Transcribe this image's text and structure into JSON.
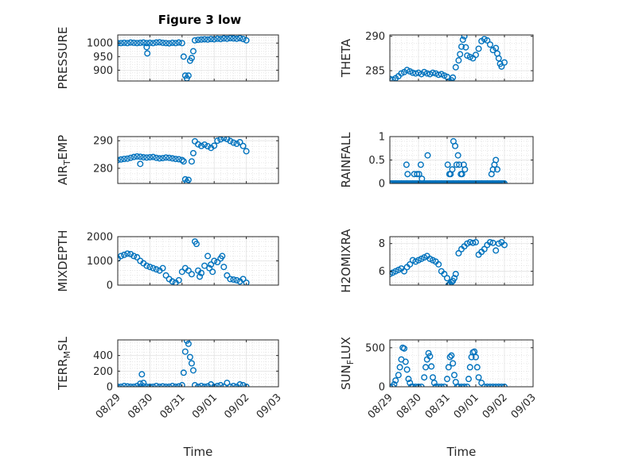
{
  "title": "Figure 3 low",
  "marker_color": "#0072BD",
  "chart_data": [
    {
      "type": "scatter",
      "ylabel": "PRESSURE",
      "ylim": [
        860,
        1030
      ],
      "yticks": [
        900,
        950,
        1000
      ],
      "grid": true,
      "x": [
        0,
        0.1,
        0.2,
        0.3,
        0.4,
        0.5,
        0.6,
        0.7,
        0.8,
        0.9,
        1.0,
        1.1,
        1.2,
        1.3,
        1.4,
        1.5,
        1.6,
        1.7,
        1.8,
        1.9,
        2.0,
        2.05,
        2.1,
        2.15,
        2.2,
        2.25,
        2.3,
        2.35,
        2.4,
        2.5,
        2.6,
        2.7,
        2.8,
        2.9,
        3.0,
        3.1,
        3.2,
        3.3,
        3.4,
        3.5,
        3.6,
        3.7,
        3.8,
        3.9,
        4.0,
        0.9,
        0.92
      ],
      "y": [
        1000,
        1000,
        1001,
        1000,
        1002,
        1001,
        1000,
        1001,
        1002,
        1000,
        1001,
        1000,
        1002,
        1003,
        1001,
        1000,
        999,
        1001,
        1000,
        1002,
        1000,
        950,
        880,
        870,
        880,
        935,
        945,
        970,
        1010,
        1012,
        1013,
        1014,
        1013,
        1015,
        1014,
        1016,
        1015,
        1017,
        1016,
        1018,
        1017,
        1016,
        1018,
        1015,
        1010,
        985,
        962
      ]
    },
    {
      "type": "scatter",
      "ylabel": "THETA",
      "ylim": [
        283.5,
        290.2
      ],
      "yticks": [
        285,
        290
      ],
      "grid": true,
      "x": [
        0,
        0.1,
        0.2,
        0.3,
        0.4,
        0.5,
        0.6,
        0.7,
        0.8,
        0.9,
        1.0,
        1.1,
        1.2,
        1.3,
        1.4,
        1.5,
        1.6,
        1.7,
        1.8,
        1.9,
        2.0,
        2.05,
        2.1,
        2.15,
        2.2,
        2.3,
        2.4,
        2.45,
        2.5,
        2.55,
        2.6,
        2.65,
        2.7,
        2.8,
        2.9,
        3.0,
        3.1,
        3.2,
        3.3,
        3.4,
        3.5,
        3.6,
        3.7,
        3.75,
        3.8,
        3.85,
        3.9,
        4.0
      ],
      "y": [
        283.8,
        283.7,
        283.9,
        284.2,
        284.6,
        284.8,
        285.1,
        284.9,
        284.7,
        284.6,
        284.7,
        284.5,
        284.8,
        284.6,
        284.5,
        284.7,
        284.6,
        284.4,
        284.5,
        284.3,
        284.1,
        283.4,
        283.2,
        283.6,
        284.0,
        285.5,
        286.5,
        287.4,
        288.5,
        289.5,
        290.0,
        288.4,
        287.2,
        287.0,
        286.8,
        287.3,
        288.2,
        289.3,
        289.6,
        289.4,
        288.8,
        288.0,
        288.3,
        287.5,
        286.8,
        286.0,
        285.6,
        286.2
      ]
    },
    {
      "type": "scatter",
      "ylabel": "AIR_TEMP",
      "ylim": [
        274.5,
        291.5
      ],
      "yticks": [
        280,
        290
      ],
      "grid": true,
      "x": [
        0,
        0.1,
        0.2,
        0.3,
        0.4,
        0.5,
        0.6,
        0.7,
        0.8,
        0.9,
        1.0,
        1.1,
        1.2,
        1.3,
        1.4,
        1.5,
        1.6,
        1.7,
        1.8,
        1.9,
        2.0,
        2.05,
        2.1,
        2.15,
        2.2,
        2.3,
        2.35,
        2.4,
        2.5,
        2.6,
        2.7,
        2.8,
        2.9,
        3.0,
        3.1,
        3.2,
        3.3,
        3.4,
        3.5,
        3.6,
        3.7,
        3.8,
        3.9,
        4.0,
        0.7
      ],
      "y": [
        283,
        283.2,
        283.4,
        283.5,
        283.8,
        284.1,
        284.3,
        284.2,
        284.0,
        283.9,
        284.0,
        284.1,
        283.8,
        283.6,
        283.7,
        283.9,
        283.8,
        283.6,
        283.4,
        283.3,
        283.0,
        282.5,
        276,
        275,
        275.8,
        282.5,
        285.5,
        289.8,
        288.7,
        288.1,
        288.6,
        288.0,
        287.4,
        288.2,
        290,
        290.5,
        291,
        290.6,
        289.9,
        289.3,
        288.9,
        289.5,
        288.1,
        286.2,
        281.6
      ]
    },
    {
      "type": "scatter",
      "ylabel": "RAINFALL",
      "ylim": [
        0,
        1.0
      ],
      "yticks": [
        0,
        0.5,
        1
      ],
      "grid": true,
      "x": [
        0,
        0.05,
        0.1,
        0.15,
        0.2,
        0.25,
        0.3,
        0.35,
        0.4,
        0.45,
        0.5,
        0.55,
        0.6,
        0.65,
        0.7,
        0.75,
        0.8,
        0.85,
        0.9,
        0.95,
        1.0,
        1.05,
        1.1,
        1.15,
        1.2,
        1.25,
        1.3,
        1.35,
        1.4,
        1.45,
        1.5,
        1.55,
        1.6,
        1.65,
        1.7,
        1.75,
        1.8,
        1.85,
        1.9,
        1.95,
        2.0,
        2.05,
        2.1,
        2.15,
        2.2,
        2.25,
        2.3,
        2.35,
        2.4,
        2.45,
        2.5,
        2.55,
        2.6,
        2.65,
        2.7,
        2.75,
        2.8,
        2.85,
        2.9,
        2.95,
        3.0,
        3.05,
        3.1,
        3.15,
        3.2,
        3.25,
        3.3,
        3.35,
        3.4,
        3.45,
        3.5,
        3.55,
        3.6,
        3.65,
        3.7,
        3.75,
        3.8,
        3.85,
        3.9,
        3.95,
        4.0,
        0.58,
        0.62,
        0.85,
        0.95,
        1.02,
        1.08,
        1.12,
        1.32,
        2.02,
        2.08,
        2.12,
        2.18,
        2.22,
        2.28,
        2.33,
        2.38,
        2.42,
        2.48,
        2.52,
        2.58,
        2.62,
        3.55,
        3.6,
        3.65,
        3.7,
        3.75
      ],
      "y": [
        0,
        0,
        0,
        0,
        0,
        0,
        0,
        0,
        0,
        0,
        0,
        0,
        0,
        0,
        0,
        0,
        0,
        0,
        0,
        0,
        0,
        0,
        0,
        0,
        0,
        0,
        0,
        0,
        0,
        0,
        0,
        0,
        0,
        0,
        0,
        0,
        0,
        0,
        0,
        0,
        0,
        0,
        0,
        0,
        0,
        0,
        0,
        0,
        0,
        0,
        0,
        0,
        0,
        0,
        0,
        0,
        0,
        0,
        0,
        0,
        0,
        0,
        0,
        0,
        0,
        0,
        0,
        0,
        0,
        0,
        0,
        0,
        0,
        0,
        0,
        0,
        0,
        0,
        0,
        0,
        0,
        0.4,
        0.2,
        0.2,
        0.2,
        0.2,
        0.4,
        0.1,
        0.6,
        0.4,
        0.2,
        0.2,
        0.3,
        0.9,
        0.8,
        0.4,
        0.6,
        0.4,
        0.2,
        0.2,
        0.4,
        0.3,
        0.2,
        0.3,
        0.4,
        0.5,
        0.3
      ]
    },
    {
      "type": "scatter",
      "ylabel": "MIXDEPTH",
      "ylim": [
        0,
        2000
      ],
      "yticks": [
        0,
        1000,
        2000
      ],
      "grid": true,
      "x": [
        0,
        0.1,
        0.2,
        0.3,
        0.4,
        0.5,
        0.6,
        0.7,
        0.8,
        0.9,
        1.0,
        1.1,
        1.2,
        1.3,
        1.4,
        1.5,
        1.6,
        1.7,
        1.8,
        1.9,
        2.0,
        2.1,
        2.2,
        2.3,
        2.4,
        2.45,
        2.5,
        2.55,
        2.6,
        2.7,
        2.8,
        2.85,
        2.9,
        2.95,
        3.0,
        3.1,
        3.2,
        3.25,
        3.3,
        3.4,
        3.5,
        3.6,
        3.7,
        3.8,
        3.9,
        4.0
      ],
      "y": [
        1100,
        1200,
        1250,
        1300,
        1280,
        1200,
        1150,
        1000,
        900,
        800,
        750,
        700,
        650,
        600,
        700,
        400,
        250,
        150,
        100,
        200,
        550,
        700,
        600,
        450,
        1800,
        1700,
        600,
        350,
        500,
        800,
        1200,
        700,
        850,
        550,
        1000,
        950,
        1100,
        1200,
        750,
        400,
        250,
        230,
        200,
        150,
        250,
        100
      ]
    },
    {
      "type": "scatter",
      "ylabel": "H2OMIXRA",
      "ylim": [
        5,
        8.5
      ],
      "yticks": [
        6,
        8
      ],
      "grid": true,
      "x": [
        0,
        0.1,
        0.2,
        0.3,
        0.4,
        0.5,
        0.6,
        0.7,
        0.8,
        0.9,
        1.0,
        1.1,
        1.2,
        1.3,
        1.4,
        1.5,
        1.6,
        1.7,
        1.8,
        1.9,
        2.0,
        2.05,
        2.1,
        2.15,
        2.2,
        2.25,
        2.3,
        2.4,
        2.5,
        2.6,
        2.7,
        2.8,
        2.9,
        3.0,
        3.1,
        3.2,
        3.3,
        3.4,
        3.5,
        3.6,
        3.7,
        3.8,
        3.9,
        4.0
      ],
      "y": [
        5.8,
        5.9,
        6.0,
        6.1,
        6.2,
        6.0,
        6.3,
        6.5,
        6.8,
        6.7,
        6.8,
        6.9,
        7.0,
        7.1,
        6.9,
        6.8,
        6.7,
        6.5,
        6.0,
        5.8,
        5.5,
        5.0,
        5.1,
        5.2,
        5.3,
        5.5,
        5.8,
        7.3,
        7.6,
        7.8,
        8.0,
        8.1,
        8.05,
        8.1,
        7.2,
        7.4,
        7.6,
        7.9,
        8.1,
        8.05,
        7.5,
        8.0,
        8.1,
        7.9
      ]
    },
    {
      "type": "scatter",
      "ylabel": "TERR_MSL",
      "ylim": [
        0,
        600
      ],
      "yticks": [
        0,
        200,
        400
      ],
      "grid": true,
      "x": [
        0,
        0.1,
        0.2,
        0.3,
        0.4,
        0.5,
        0.6,
        0.7,
        0.8,
        0.9,
        1.0,
        1.1,
        1.2,
        1.3,
        1.4,
        1.5,
        1.6,
        1.7,
        1.8,
        1.9,
        2.0,
        2.05,
        2.1,
        2.15,
        2.2,
        2.25,
        2.3,
        2.35,
        2.4,
        2.5,
        2.6,
        2.7,
        2.8,
        2.9,
        3.0,
        3.1,
        3.2,
        3.3,
        3.4,
        3.5,
        3.6,
        3.7,
        3.8,
        3.9,
        4.0,
        0.7,
        0.75,
        0.8
      ],
      "y": [
        0,
        0,
        10,
        5,
        0,
        0,
        10,
        0,
        5,
        0,
        0,
        0,
        10,
        0,
        5,
        0,
        0,
        10,
        0,
        5,
        20,
        180,
        450,
        590,
        550,
        380,
        300,
        210,
        20,
        0,
        10,
        0,
        5,
        30,
        0,
        10,
        20,
        0,
        50,
        0,
        10,
        0,
        30,
        20,
        0,
        40,
        160,
        50
      ]
    },
    {
      "type": "scatter",
      "ylabel": "SUN_FLUX",
      "ylim": [
        0,
        600
      ],
      "yticks": [
        0,
        500
      ],
      "grid": true,
      "x": [
        0,
        0.1,
        0.15,
        0.2,
        0.3,
        0.35,
        0.4,
        0.45,
        0.5,
        0.55,
        0.6,
        0.65,
        0.7,
        0.75,
        0.8,
        0.9,
        1.0,
        1.1,
        1.2,
        1.25,
        1.3,
        1.35,
        1.4,
        1.45,
        1.5,
        1.55,
        1.6,
        1.7,
        1.8,
        1.9,
        2.0,
        2.05,
        2.1,
        2.15,
        2.2,
        2.25,
        2.3,
        2.35,
        2.4,
        2.5,
        2.6,
        2.7,
        2.75,
        2.8,
        2.85,
        2.9,
        2.95,
        3.0,
        3.05,
        3.1,
        3.2,
        3.3,
        3.4,
        3.5,
        3.6,
        3.7,
        3.8,
        3.9,
        4.0
      ],
      "y": [
        0,
        0,
        30,
        80,
        150,
        250,
        350,
        500,
        490,
        320,
        220,
        100,
        50,
        0,
        0,
        0,
        0,
        0,
        120,
        250,
        350,
        430,
        390,
        260,
        120,
        50,
        0,
        0,
        0,
        0,
        100,
        250,
        380,
        400,
        300,
        150,
        60,
        0,
        0,
        0,
        0,
        0,
        100,
        250,
        380,
        440,
        450,
        380,
        250,
        120,
        50,
        0,
        0,
        0,
        0,
        0,
        0,
        0,
        0
      ]
    }
  ],
  "x_tick_labels": [
    "08/29",
    "08/30",
    "08/31",
    "09/01",
    "09/02",
    "09/03"
  ],
  "x_axis_label": "Time"
}
